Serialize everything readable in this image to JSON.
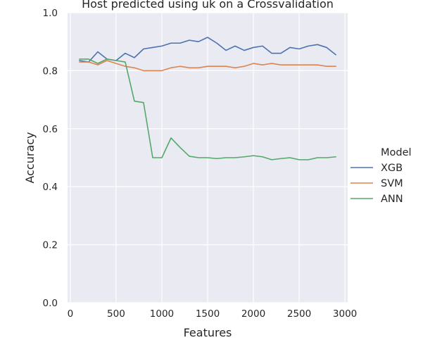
{
  "chart_data": {
    "type": "line",
    "title": "Host predicted using uk on a Crossvalidation",
    "xlabel": "Features",
    "ylabel": "Accuracy",
    "xlim": [
      -30,
      3030
    ],
    "ylim": [
      0.0,
      1.0
    ],
    "xticks": [
      0,
      500,
      1000,
      1500,
      2000,
      2500,
      3000
    ],
    "yticks": [
      0.0,
      0.2,
      0.4,
      0.6,
      0.8,
      1.0
    ],
    "xtick_labels": [
      "0",
      "500",
      "1000",
      "1500",
      "2000",
      "2500",
      "3000"
    ],
    "ytick_labels": [
      "0.0",
      "0.2",
      "0.4",
      "0.6",
      "0.8",
      "1.0"
    ],
    "grid": true,
    "legend": {
      "title": "Model",
      "placement": "right"
    },
    "x": [
      100,
      200,
      300,
      400,
      500,
      600,
      700,
      800,
      900,
      1000,
      1100,
      1200,
      1300,
      1400,
      1500,
      1600,
      1700,
      1800,
      1900,
      2000,
      2100,
      2200,
      2300,
      2400,
      2500,
      2600,
      2700,
      2800,
      2900
    ],
    "series": [
      {
        "name": "XGB",
        "color": "#4c72b0",
        "values": [
          0.835,
          0.83,
          0.865,
          0.84,
          0.835,
          0.86,
          0.845,
          0.875,
          0.88,
          0.885,
          0.895,
          0.895,
          0.905,
          0.9,
          0.915,
          0.895,
          0.87,
          0.885,
          0.87,
          0.88,
          0.885,
          0.86,
          0.86,
          0.88,
          0.875,
          0.885,
          0.89,
          0.88,
          0.855
        ]
      },
      {
        "name": "SVM",
        "color": "#dd8452",
        "values": [
          0.83,
          0.83,
          0.82,
          0.835,
          0.825,
          0.815,
          0.81,
          0.8,
          0.8,
          0.8,
          0.81,
          0.815,
          0.81,
          0.81,
          0.815,
          0.815,
          0.815,
          0.81,
          0.815,
          0.825,
          0.82,
          0.825,
          0.82,
          0.82,
          0.82,
          0.82,
          0.82,
          0.815,
          0.815
        ]
      },
      {
        "name": "ANN",
        "color": "#55a868",
        "values": [
          0.84,
          0.84,
          0.825,
          0.84,
          0.835,
          0.83,
          0.695,
          0.69,
          0.5,
          0.5,
          0.568,
          0.535,
          0.505,
          0.5,
          0.5,
          0.497,
          0.5,
          0.5,
          0.503,
          0.507,
          0.503,
          0.493,
          0.497,
          0.5,
          0.493,
          0.493,
          0.5,
          0.5,
          0.503
        ]
      }
    ]
  }
}
